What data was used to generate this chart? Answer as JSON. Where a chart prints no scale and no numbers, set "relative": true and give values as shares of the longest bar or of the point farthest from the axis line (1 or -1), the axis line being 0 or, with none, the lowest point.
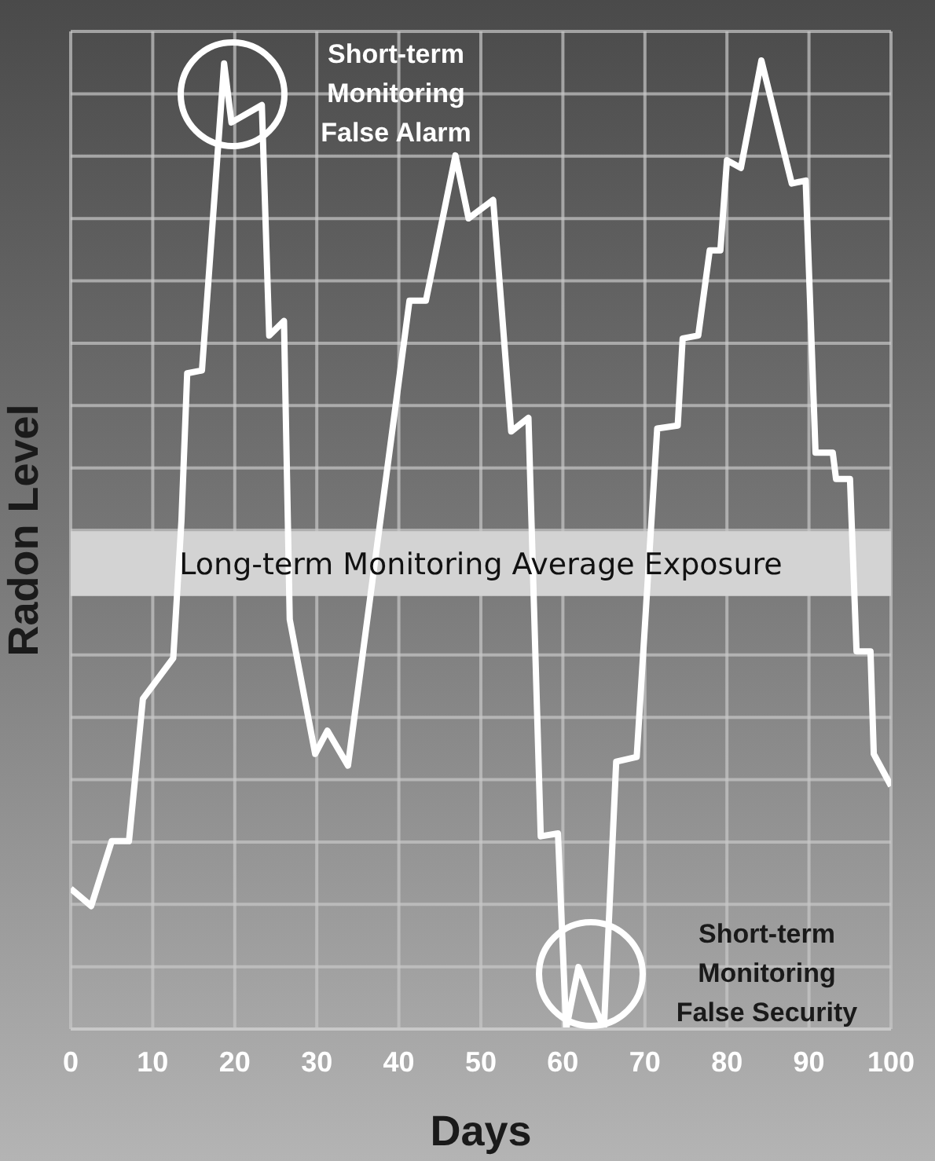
{
  "chart_data": {
    "type": "line",
    "xlabel": "Days",
    "ylabel": "Radon Level",
    "relative": true,
    "x": [
      0,
      2.5,
      5,
      7.1,
      8.8,
      12.5,
      13.5,
      14.2,
      16,
      18.7,
      19.6,
      23.3,
      24.2,
      26,
      26.7,
      29.8,
      31.3,
      33.8,
      41.3,
      43.3,
      46.9,
      48.5,
      51.5,
      53.7,
      55.8,
      57.3,
      59.4,
      60.4,
      61.9,
      65,
      66.5,
      69,
      71.5,
      74,
      74.6,
      76.5,
      77.9,
      79.2,
      80,
      81.7,
      84.2,
      87.9,
      89.6,
      90.8,
      92.9,
      93.3,
      95,
      95.8,
      97.5,
      97.9,
      100
    ],
    "values": [
      0.145,
      0.127,
      0.194,
      0.194,
      0.341,
      0.383,
      0.525,
      0.677,
      0.68,
      0.997,
      0.936,
      0.954,
      0.716,
      0.731,
      0.423,
      0.284,
      0.308,
      0.272,
      0.752,
      0.752,
      0.902,
      0.837,
      0.856,
      0.617,
      0.631,
      0.199,
      0.202,
      0,
      0.064,
      0,
      0.276,
      0.281,
      0.62,
      0.623,
      0.713,
      0.716,
      0.804,
      0.804,
      0.897,
      0.889,
      1,
      0.873,
      0.876,
      0.595,
      0.595,
      0.568,
      0.568,
      0.39,
      0.39,
      0.284,
      0.251
    ],
    "color": "#ffffff",
    "xlim": [
      0,
      100
    ],
    "xticks": [
      0,
      10,
      20,
      30,
      40,
      50,
      60,
      70,
      80,
      90,
      100
    ],
    "grid": true,
    "marker": "none",
    "line_style": "solid",
    "bands": [
      {
        "axis": "y",
        "from": 0.447,
        "to": 0.514,
        "label": "Long-term Monitoring Average Exposure",
        "color": "#d3d3d3"
      }
    ],
    "annotations": [
      "Short-term Monitoring False Alarm",
      "Short-term Monitoring False Security"
    ]
  }
}
